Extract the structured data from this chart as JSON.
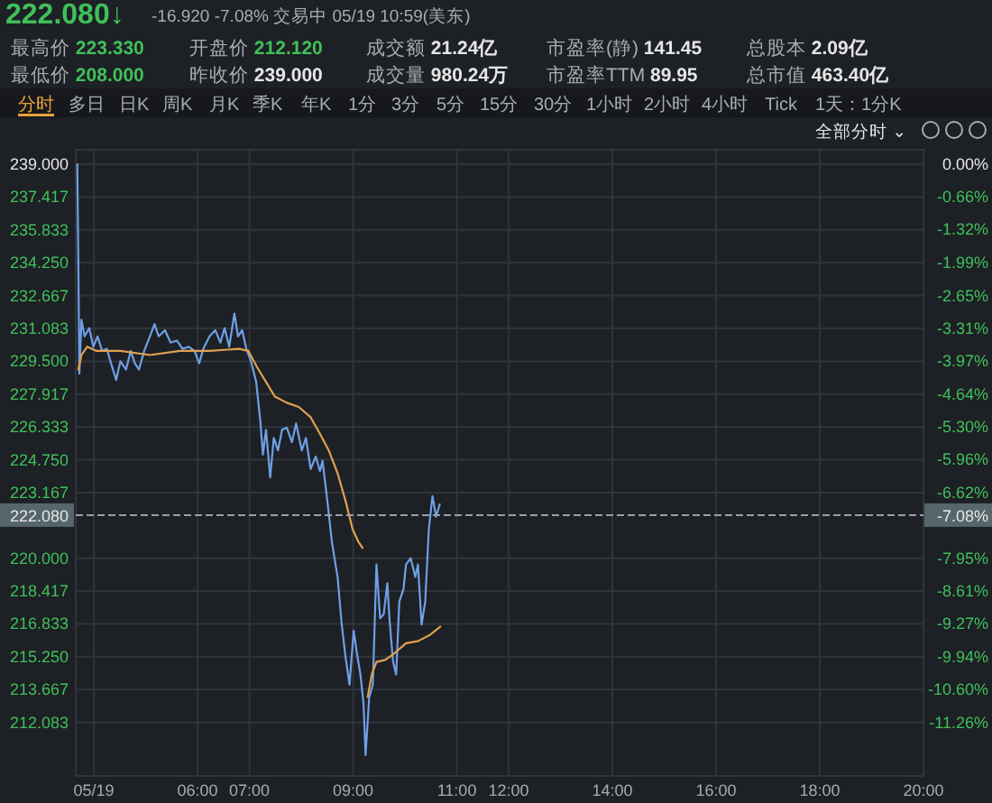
{
  "chart_data": {
    "type": "line",
    "title": "222.080↓",
    "subtitle": "-16.920  -7.08%  交易中 05/19 10:59(美东)",
    "annotations": [
      "最高价 223.330",
      "开盘价 212.120",
      "成交额 21.24亿",
      "市盈率(静) 141.45",
      "总股本 2.09亿",
      "最低价 208.000",
      "昨收价 239.000",
      "成交量 980.24万",
      "市盈率TTM 89.95",
      "总市值 463.40亿",
      "分时",
      "多日",
      "日K",
      "周K",
      "月K",
      "季K",
      "年K",
      "1分",
      "3分",
      "5分",
      "15分",
      "30分",
      "1小时",
      "2小时",
      "4小时",
      "Tick",
      "1天：1分K",
      "全部分时 ⌄",
      "-7.08%"
    ],
    "xlim": [
      3.65,
      20
    ],
    "xticks": [
      {
        "value": 4,
        "label": "05/19"
      },
      {
        "value": 6,
        "label": "06:00"
      },
      {
        "value": 7,
        "label": "07:00"
      },
      {
        "value": 9,
        "label": "09:00"
      },
      {
        "value": 11,
        "label": "11:00"
      },
      {
        "value": 12,
        "label": "12:00"
      },
      {
        "value": 14,
        "label": "14:00"
      },
      {
        "value": 16,
        "label": "16:00"
      },
      {
        "value": 18,
        "label": "18:00"
      },
      {
        "value": 20,
        "label": "20:00"
      }
    ],
    "ylim": [
      209.5,
      239.7
    ],
    "yticks": [
      {
        "value": 239,
        "label": "239.000"
      },
      {
        "value": 237.417,
        "label": "237.417"
      },
      {
        "value": 235.833,
        "label": "235.833"
      },
      {
        "value": 234.25,
        "label": "234.250"
      },
      {
        "value": 232.667,
        "label": "232.667"
      },
      {
        "value": 231.083,
        "label": "231.083"
      },
      {
        "value": 229.5,
        "label": "229.500"
      },
      {
        "value": 227.917,
        "label": "227.917"
      },
      {
        "value": 226.333,
        "label": "226.333"
      },
      {
        "value": 224.75,
        "label": "224.750"
      },
      {
        "value": 223.167,
        "label": "223.167"
      },
      {
        "value": 220,
        "label": "220.000"
      },
      {
        "value": 218.417,
        "label": "218.417"
      },
      {
        "value": 216.833,
        "label": "216.833"
      },
      {
        "value": 215.25,
        "label": "215.250"
      },
      {
        "value": 213.667,
        "label": "213.667"
      },
      {
        "value": 212.083,
        "label": "212.083"
      }
    ],
    "y2lim": [
      -12.34,
      0.29
    ],
    "y2ticks": [
      {
        "value": 0,
        "label": "0.00%"
      },
      {
        "value": -0.66,
        "label": "-0.66%"
      },
      {
        "value": -1.32,
        "label": "-1.32%"
      },
      {
        "value": -1.99,
        "label": "-1.99%"
      },
      {
        "value": -2.65,
        "label": "-2.65%"
      },
      {
        "value": -3.31,
        "label": "-3.31%"
      },
      {
        "value": -3.97,
        "label": "-3.97%"
      },
      {
        "value": -4.64,
        "label": "-4.64%"
      },
      {
        "value": -5.3,
        "label": "-5.30%"
      },
      {
        "value": -5.96,
        "label": "-5.96%"
      },
      {
        "value": -6.62,
        "label": "-6.62%"
      },
      {
        "value": -7.95,
        "label": "-7.95%"
      },
      {
        "value": -8.61,
        "label": "-8.61%"
      },
      {
        "value": -9.27,
        "label": "-9.27%"
      },
      {
        "value": -9.94,
        "label": "-9.94%"
      },
      {
        "value": -10.6,
        "label": "-10.60%"
      },
      {
        "value": -11.26,
        "label": "-11.26%"
      }
    ],
    "grid": true,
    "ref_lines": [
      {
        "axis": "y",
        "value": 222.08,
        "label": "222.080",
        "line_style": "dashed",
        "color": "#9aa0a8"
      }
    ],
    "series": [
      {
        "color": "#6f9fe6",
        "x": [
          3.68,
          3.7,
          3.72,
          3.76,
          3.82,
          3.91,
          3.99,
          4.07,
          4.16,
          4.25,
          4.33,
          4.43,
          4.51,
          4.62,
          4.71,
          4.79,
          4.87,
          4.97,
          5.08,
          5.17,
          5.25,
          5.37,
          5.48,
          5.6,
          5.71,
          5.83,
          5.94,
          6.03,
          6.11,
          6.23,
          6.34,
          6.44,
          6.52,
          6.61,
          6.71,
          6.78,
          6.86,
          6.94,
          7.03,
          7.13,
          7.21,
          7.26,
          7.32,
          7.4,
          7.47,
          7.55,
          7.63,
          7.72,
          7.82,
          7.9,
          8.01,
          8.09,
          8.18,
          8.28,
          8.36,
          8.41,
          8.51,
          8.59,
          8.64,
          8.7,
          8.78,
          8.85,
          8.93,
          9.01,
          9.08,
          9.14,
          9.2,
          9.24,
          9.31,
          9.38,
          9.45,
          9.52,
          9.59,
          9.66,
          9.7,
          9.77,
          9.83,
          9.89,
          9.97,
          10.02,
          10.11,
          10.2,
          10.25,
          10.32,
          10.39,
          10.46,
          10.53,
          10.6,
          10.67
        ],
        "values": [
          239.0,
          234.2,
          228.9,
          231.5,
          230.7,
          231.1,
          230.2,
          230.7,
          230.0,
          230.1,
          229.4,
          228.6,
          229.5,
          229.1,
          230.0,
          229.4,
          229.1,
          230.0,
          230.7,
          231.3,
          230.7,
          231.0,
          230.4,
          230.5,
          230.1,
          230.2,
          230.0,
          229.4,
          230.1,
          230.7,
          231.0,
          230.4,
          231.1,
          230.2,
          231.8,
          230.7,
          231.0,
          230.1,
          229.5,
          228.5,
          226.6,
          225.0,
          226.2,
          223.9,
          225.8,
          225.2,
          226.2,
          226.3,
          225.6,
          226.5,
          225.2,
          225.8,
          224.3,
          224.9,
          224.2,
          224.7,
          222.6,
          220.8,
          220.0,
          219.1,
          216.8,
          215.3,
          213.9,
          216.5,
          215.3,
          214.4,
          213.0,
          210.5,
          213.3,
          213.9,
          219.7,
          217.1,
          217.3,
          218.8,
          217.1,
          215.0,
          214.4,
          217.9,
          218.5,
          219.7,
          220.0,
          219.1,
          219.7,
          216.8,
          217.9,
          221.4,
          223.0,
          222.0,
          222.6
        ]
      },
      {
        "color": "#e0a050",
        "x": [
          3.7,
          3.76,
          3.87,
          4.05,
          4.51,
          5.08,
          5.66,
          6.23,
          6.8,
          6.98,
          7.15,
          7.32,
          7.49,
          7.72,
          7.95,
          8.18,
          8.36,
          8.53,
          8.7,
          8.85,
          8.99,
          9.1,
          9.18
        ],
        "values": [
          229.1,
          229.8,
          230.2,
          230.0,
          230.0,
          229.8,
          230.0,
          230.0,
          230.1,
          230.0,
          229.2,
          228.5,
          227.8,
          227.5,
          227.3,
          226.8,
          226.0,
          225.2,
          224.1,
          222.8,
          221.4,
          220.8,
          220.5
        ]
      },
      {
        "color": "#e0a050",
        "x": [
          9.28,
          9.36,
          9.45,
          9.62,
          9.79,
          10.02,
          10.25,
          10.48,
          10.68
        ],
        "values": [
          213.3,
          214.4,
          215.0,
          215.1,
          215.4,
          215.9,
          216.0,
          216.3,
          216.7
        ]
      }
    ]
  }
}
